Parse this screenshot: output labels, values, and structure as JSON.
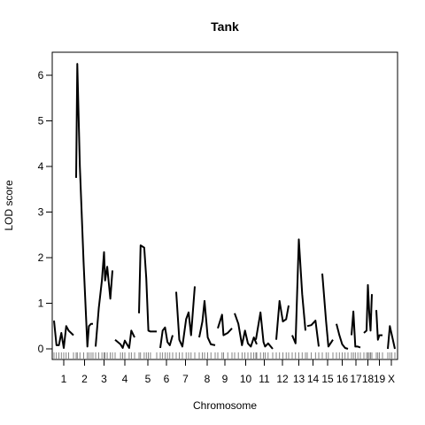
{
  "chart_data": {
    "type": "line",
    "title": "Tank",
    "xlabel": "Chromosome",
    "ylabel": "LOD score",
    "ylim": [
      0,
      6.5
    ],
    "y_ticks": [
      0,
      1,
      2,
      3,
      4,
      5,
      6
    ],
    "grid": false,
    "legend": "none",
    "line_color": "#000000",
    "chromosomes": [
      {
        "label": "1",
        "x": [
          0,
          5,
          10,
          15,
          20,
          25,
          30,
          40
        ],
        "y": [
          0.62,
          0.08,
          0.08,
          0.35,
          0.02,
          0.5,
          0.4,
          0.3
        ]
      },
      {
        "label": "2",
        "x": [
          0,
          3,
          10,
          20,
          30,
          34,
          40,
          45
        ],
        "y": [
          3.75,
          6.25,
          4.0,
          1.9,
          0.05,
          0.5,
          0.55,
          0.55
        ]
      },
      {
        "label": "3",
        "x": [
          0,
          6,
          12,
          16,
          18,
          22,
          28,
          32
        ],
        "y": [
          0.05,
          0.9,
          1.5,
          2.12,
          1.5,
          1.8,
          1.1,
          1.72
        ]
      },
      {
        "label": "4",
        "x": [
          0,
          10,
          14,
          18,
          26,
          30,
          36
        ],
        "y": [
          0.2,
          0.1,
          0.02,
          0.18,
          0.02,
          0.4,
          0.25
        ]
      },
      {
        "label": "5",
        "x": [
          0,
          3,
          10,
          14,
          18,
          22,
          34
        ],
        "y": [
          0.78,
          2.27,
          2.22,
          1.55,
          0.4,
          0.38,
          0.38
        ]
      },
      {
        "label": "6",
        "x": [
          0,
          5,
          10,
          15,
          20,
          26
        ],
        "y": [
          0.02,
          0.4,
          0.47,
          0.15,
          0.08,
          0.3
        ]
      },
      {
        "label": "7",
        "x": [
          0,
          5,
          10,
          16,
          20,
          24,
          30
        ],
        "y": [
          1.25,
          0.2,
          0.05,
          0.65,
          0.8,
          0.3,
          1.37
        ]
      },
      {
        "label": "8",
        "x": [
          0,
          6,
          10,
          16,
          22,
          30
        ],
        "y": [
          0.25,
          0.6,
          1.05,
          0.25,
          0.1,
          0.08
        ]
      },
      {
        "label": "9",
        "x": [
          0,
          6,
          8,
          14,
          20
        ],
        "y": [
          0.45,
          0.75,
          0.3,
          0.35,
          0.45
        ]
      },
      {
        "label": "10",
        "x": [
          0,
          5,
          10,
          14,
          18,
          22,
          26,
          30
        ],
        "y": [
          0.78,
          0.55,
          0.08,
          0.4,
          0.12,
          0.05,
          0.25,
          0.1
        ]
      },
      {
        "label": "11",
        "x": [
          0,
          6,
          10,
          12,
          16,
          22
        ],
        "y": [
          0.2,
          0.8,
          0.15,
          0.05,
          0.12,
          0.0
        ]
      },
      {
        "label": "12",
        "x": [
          0,
          4,
          8,
          12,
          15
        ],
        "y": [
          0.2,
          1.05,
          0.6,
          0.65,
          0.95
        ]
      },
      {
        "label": "13",
        "x": [
          0,
          4,
          8,
          12,
          16
        ],
        "y": [
          0.3,
          0.12,
          2.4,
          1.2,
          0.4
        ]
      },
      {
        "label": "14",
        "x": [
          0,
          5,
          10,
          14
        ],
        "y": [
          0.5,
          0.52,
          0.62,
          0.05
        ]
      },
      {
        "label": "15",
        "x": [
          0,
          5,
          8,
          14
        ],
        "y": [
          1.65,
          0.6,
          0.05,
          0.2
        ]
      },
      {
        "label": "16",
        "x": [
          0,
          4,
          8,
          12,
          16
        ],
        "y": [
          0.55,
          0.3,
          0.1,
          0.02,
          0.0
        ]
      },
      {
        "label": "17",
        "x": [
          0,
          3,
          6,
          10,
          14
        ],
        "y": [
          0.3,
          0.82,
          0.05,
          0.05,
          0.03
        ]
      },
      {
        "label": "18",
        "x": [
          0,
          4,
          6,
          8,
          10,
          12
        ],
        "y": [
          0.35,
          0.4,
          1.4,
          0.8,
          0.4,
          1.2
        ]
      },
      {
        "label": "19",
        "x": [
          0,
          2,
          4,
          8
        ],
        "y": [
          0.85,
          0.2,
          0.3,
          0.3
        ]
      },
      {
        "label": "X",
        "x": [
          0,
          4,
          8,
          14
        ],
        "y": [
          0.0,
          0.5,
          0.3,
          0.0
        ]
      }
    ]
  }
}
